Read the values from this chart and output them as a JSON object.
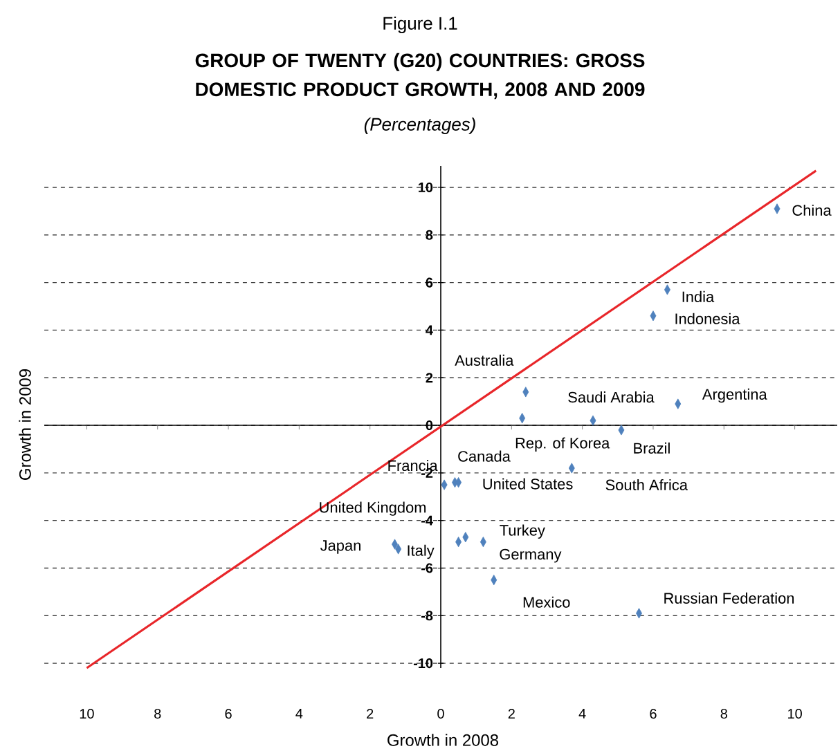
{
  "chart_data": {
    "type": "scatter",
    "title": "GROUP OF TWENTY (G20) COUNTRIES: GROSS DOMESTIC PRODUCT GROWTH, 2008 AND 2009",
    "subtitle": "(Percentages)",
    "xlabel": "Growth in 2008",
    "ylabel": "Growth in 2009",
    "xlim": [
      -11.2,
      11.2
    ],
    "ylim": [
      -10.2,
      10.9
    ],
    "xticks": [
      {
        "value": -10,
        "label": "10"
      },
      {
        "value": -8,
        "label": "8"
      },
      {
        "value": -6,
        "label": "6"
      },
      {
        "value": -4,
        "label": "4"
      },
      {
        "value": -2,
        "label": "2"
      },
      0,
      2,
      4,
      6,
      8,
      10
    ],
    "yticks": [
      -10,
      -8,
      -6,
      -4,
      -2,
      0,
      2,
      4,
      6,
      8,
      10
    ],
    "grid": "y",
    "series": [
      {
        "color": "#4f81bd",
        "marker": "diamond",
        "x": [
          9.5,
          6.4,
          6.0,
          2.4,
          4.3,
          6.7,
          2.3,
          5.1,
          3.7,
          0.1,
          0.4,
          0.5,
          0.5,
          -1.3,
          -1.2,
          0.7,
          1.2,
          1.5,
          5.6
        ],
        "values": [
          9.1,
          5.7,
          4.6,
          1.4,
          0.2,
          0.9,
          0.3,
          -0.2,
          -1.8,
          -2.5,
          -2.4,
          -2.4,
          -4.9,
          -5.0,
          -5.2,
          -4.7,
          -4.9,
          -6.5,
          -7.9
        ]
      },
      {
        "type": "line",
        "color": "#e8262a",
        "marker": "none",
        "x": [
          -10,
          10.6
        ],
        "values": [
          -10.2,
          10.7
        ]
      }
    ],
    "annotations": [
      "Figure I.1",
      {
        "text": "China",
        "x": 9.5,
        "y": 9.1
      },
      {
        "text": "India",
        "x": 6.4,
        "y": 5.7
      },
      {
        "text": "Indonesia",
        "x": 6.0,
        "y": 4.6
      },
      {
        "text": "Australia",
        "x": 2.4,
        "y": 1.4
      },
      {
        "text": "Saudi Arabia",
        "x": 4.3,
        "y": 0.2
      },
      {
        "text": "Argentina",
        "x": 6.7,
        "y": 0.9
      },
      {
        "text": "Rep. of Korea",
        "x": 2.3,
        "y": 0.3
      },
      {
        "text": "Brazil",
        "x": 5.1,
        "y": -0.2
      },
      {
        "text": "South Africa",
        "x": 3.7,
        "y": -1.8
      },
      {
        "text": "Francia",
        "x": 0.1,
        "y": -2.5
      },
      {
        "text": "Canada",
        "x": 0.4,
        "y": -2.4
      },
      {
        "text": "United States",
        "x": 0.5,
        "y": -2.4
      },
      {
        "text": "United Kingdom",
        "x": 0.5,
        "y": -4.9
      },
      {
        "text": "Japan",
        "x": -1.3,
        "y": -5.0
      },
      {
        "text": "Italy",
        "x": -1.2,
        "y": -5.2
      },
      {
        "text": "Turkey",
        "x": 0.7,
        "y": -4.7
      },
      {
        "text": "Germany",
        "x": 1.2,
        "y": -4.9
      },
      {
        "text": "Mexico",
        "x": 1.5,
        "y": -6.5
      },
      {
        "text": "Russian Federation",
        "x": 5.6,
        "y": -7.9
      }
    ]
  }
}
